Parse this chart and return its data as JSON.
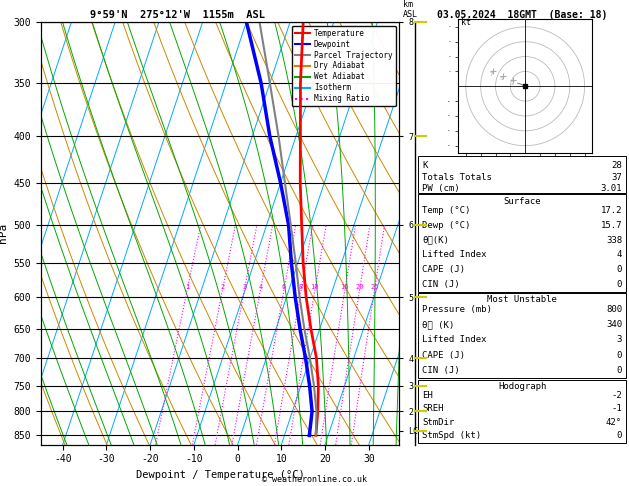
{
  "title_left": "9°59'N  275°12'W  1155m  ASL",
  "title_right": "03.05.2024  18GMT  (Base: 18)",
  "xlabel": "Dewpoint / Temperature (°C)",
  "ylabel_left": "hPa",
  "pressure_levels": [
    300,
    350,
    400,
    450,
    500,
    550,
    600,
    650,
    700,
    750,
    800,
    850
  ],
  "pressure_min": 300,
  "pressure_max": 870,
  "temp_min": -45,
  "temp_max": 37,
  "skew_factor": 32.0,
  "temp_profile": {
    "temps": [
      17.2,
      15.8,
      14.0,
      11.5,
      8.0,
      4.5,
      1.2,
      -2.0,
      -5.5,
      -9.0,
      -13.0,
      -17.0
    ],
    "pressures": [
      850,
      800,
      750,
      700,
      650,
      600,
      550,
      500,
      450,
      400,
      350,
      300
    ],
    "color": "#ff0000",
    "linewidth": 2.0
  },
  "dewp_profile": {
    "temps": [
      15.7,
      14.5,
      12.0,
      9.0,
      5.5,
      2.0,
      -1.5,
      -5.0,
      -10.0,
      -16.0,
      -22.0,
      -30.0
    ],
    "pressures": [
      850,
      800,
      750,
      700,
      650,
      600,
      550,
      500,
      450,
      400,
      350,
      300
    ],
    "color": "#0000ff",
    "linewidth": 2.5
  },
  "parcel_profile": {
    "temps": [
      17.2,
      15.5,
      13.0,
      10.0,
      6.5,
      3.0,
      -0.5,
      -4.5,
      -9.0,
      -14.0,
      -20.0,
      -27.0
    ],
    "pressures": [
      850,
      800,
      750,
      700,
      650,
      600,
      550,
      500,
      450,
      400,
      350,
      300
    ],
    "color": "#808080",
    "linewidth": 1.5
  },
  "km_ticks": {
    "pressures": [
      840,
      800,
      750,
      700,
      600,
      500,
      400,
      300
    ],
    "labels": [
      "LCL",
      "2",
      "3",
      "4",
      "5",
      "6",
      "7",
      "8"
    ]
  },
  "mixing_ratio_values": [
    1,
    2,
    3,
    4,
    6,
    8,
    10,
    16,
    20,
    25
  ],
  "mixing_ratio_color": "#ff00ff",
  "mixing_ratio_label_pressure": 590,
  "dry_adiabats_color": "#cc8800",
  "wet_adiabats_color": "#00aa00",
  "isotherm_color": "#00aaff",
  "zero_line_color": "#000000",
  "surface_info": {
    "K": 28,
    "Totals_Totals": 37,
    "PW_cm": 3.01,
    "Temp_C": 17.2,
    "Dewp_C": 15.7,
    "theta_e_K": 338,
    "Lifted_Index": 4,
    "CAPE_J": 0,
    "CIN_J": 0
  },
  "most_unstable": {
    "Pressure_mb": 800,
    "theta_e_K": 340,
    "Lifted_Index": 3,
    "CAPE_J": 0,
    "CIN_J": 0
  },
  "hodograph_stats": {
    "EH": -2,
    "SREH": -1,
    "StmDir": 42,
    "StmSpd_kt": 0
  },
  "legend_entries": [
    {
      "label": "Temperature",
      "color": "#ff0000",
      "linestyle": "solid"
    },
    {
      "label": "Dewpoint",
      "color": "#0000ff",
      "linestyle": "solid"
    },
    {
      "label": "Parcel Trajectory",
      "color": "#808080",
      "linestyle": "solid"
    },
    {
      "label": "Dry Adiabat",
      "color": "#cc8800",
      "linestyle": "solid"
    },
    {
      "label": "Wet Adiabat",
      "color": "#00aa00",
      "linestyle": "solid"
    },
    {
      "label": "Isotherm",
      "color": "#00aaff",
      "linestyle": "solid"
    },
    {
      "label": "Mixing Ratio",
      "color": "#ff00ff",
      "linestyle": "dotted"
    }
  ],
  "yellow_tick_color": "#cccc00",
  "copyright": "© weatheronline.co.uk"
}
